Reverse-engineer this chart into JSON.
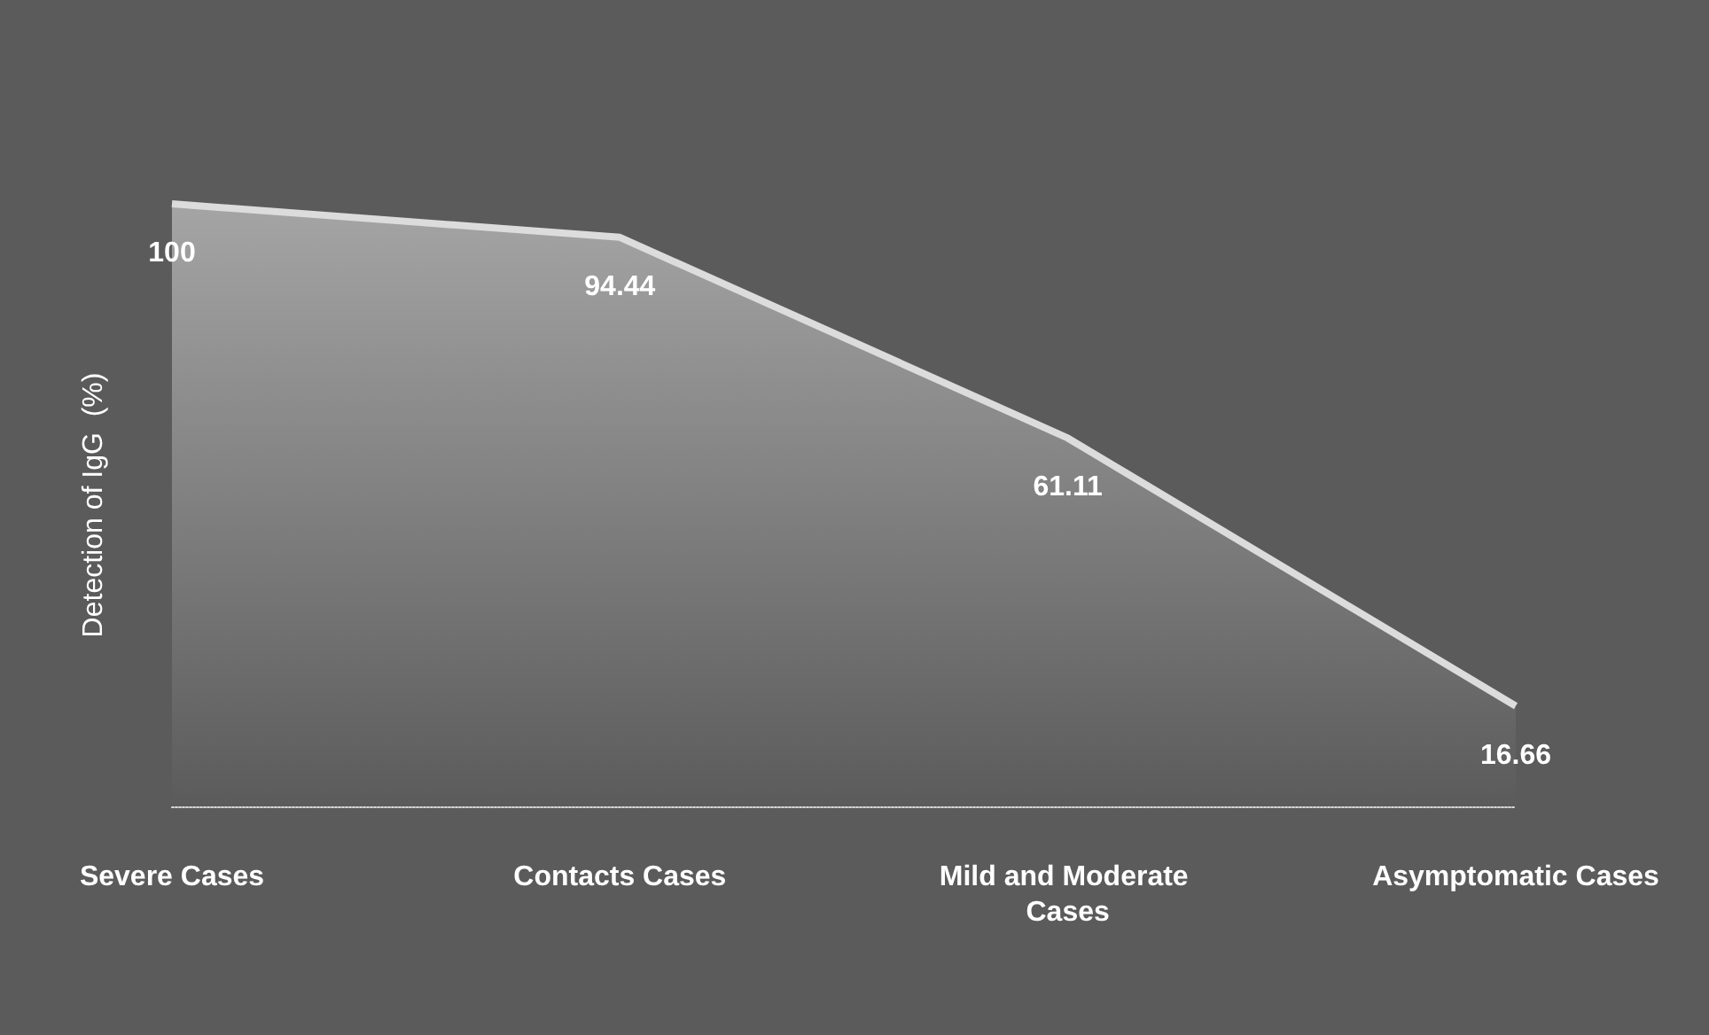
{
  "chart_data": {
    "type": "area",
    "ylabel": "Detection of IgG  (%)",
    "categories": [
      "Severe Cases",
      "Contacts Cases",
      "Mild and Moderate Cases",
      "Asymptomatic Cases"
    ],
    "series": [
      {
        "color": "#c4c4c4",
        "values": [
          100,
          94.44,
          61.11,
          16.66
        ]
      }
    ],
    "data_labels": true
  }
}
